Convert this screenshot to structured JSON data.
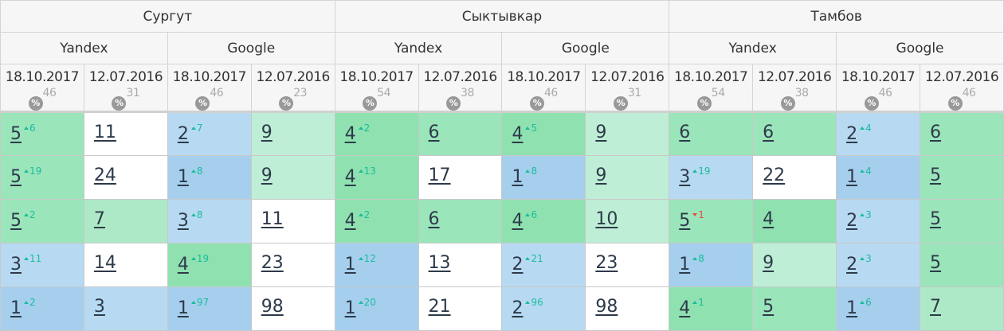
{
  "cities": [
    "Сургут",
    "Сыктывкар",
    "Тамбов"
  ],
  "engines": [
    "Yandex",
    "Google",
    "Yandex",
    "Google",
    "Yandex",
    "Google"
  ],
  "dates": [
    "18.10.2017",
    "12.07.2016",
    "18.10.2017",
    "12.07.2016",
    "18.10.2017",
    "12.07.2016",
    "18.10.2017",
    "12.07.2016",
    "18.10.2017",
    "12.07.2016",
    "18.10.2017",
    "12.07.2016"
  ],
  "percent_icon_label": "%",
  "percents": [
    "46",
    "31",
    "46",
    "23",
    "54",
    "38",
    "46",
    "31",
    "54",
    "38",
    "46",
    "46"
  ],
  "rows": [
    [
      [
        "5",
        "6"
      ],
      [
        "11"
      ],
      [
        "2",
        "7"
      ],
      [
        "9"
      ],
      [
        "4",
        "2"
      ],
      [
        "6"
      ],
      [
        "4",
        "5"
      ],
      [
        "9"
      ],
      [
        "6"
      ],
      [
        "6"
      ],
      [
        "2",
        "4"
      ],
      [
        "6"
      ]
    ],
    [
      [
        "5",
        "19"
      ],
      [
        "24"
      ],
      [
        "1",
        "8"
      ],
      [
        "9"
      ],
      [
        "4",
        "13"
      ],
      [
        "17"
      ],
      [
        "1",
        "8"
      ],
      [
        "9"
      ],
      [
        "3",
        "19"
      ],
      [
        "22"
      ],
      [
        "1",
        "4"
      ],
      [
        "5"
      ]
    ],
    [
      [
        "5",
        "2"
      ],
      [
        "7"
      ],
      [
        "3",
        "8"
      ],
      [
        "11"
      ],
      [
        "4",
        "2"
      ],
      [
        "6"
      ],
      [
        "4",
        "6"
      ],
      [
        "10"
      ],
      [
        "5",
        "-1"
      ],
      [
        "4"
      ],
      [
        "2",
        "3"
      ],
      [
        "5"
      ]
    ],
    [
      [
        "3",
        "11"
      ],
      [
        "14"
      ],
      [
        "4",
        "19"
      ],
      [
        "23"
      ],
      [
        "1",
        "12"
      ],
      [
        "13"
      ],
      [
        "2",
        "21"
      ],
      [
        "23"
      ],
      [
        "1",
        "8"
      ],
      [
        "9"
      ],
      [
        "2",
        "3"
      ],
      [
        "5"
      ]
    ],
    [
      [
        "1",
        "2"
      ],
      [
        "3"
      ],
      [
        "1",
        "97"
      ],
      [
        "98"
      ],
      [
        "1",
        "20"
      ],
      [
        "21"
      ],
      [
        "2",
        "96"
      ],
      [
        "98"
      ],
      [
        "4",
        "1"
      ],
      [
        "5"
      ],
      [
        "1",
        "6"
      ],
      [
        "7"
      ]
    ]
  ],
  "colors": {
    "rank1": "#a6cfee",
    "rank2_3": "#b7daf2",
    "rank4": "#8fe2b0",
    "rank5_6": "#9be5bb",
    "rank7": "#ade9c6",
    "rank8_10": "#bfeed6",
    "rank11plus": "#ffffff",
    "up": "#1abc9c",
    "down": "#e74c3c"
  }
}
